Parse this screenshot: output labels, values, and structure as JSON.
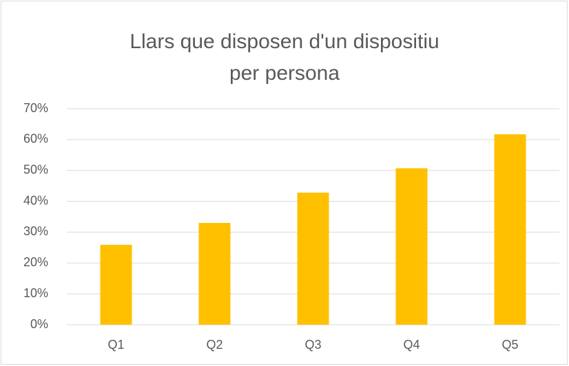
{
  "chart_data": {
    "type": "bar",
    "title": "Llars que disposen d'un dispositiu per persona",
    "categories": [
      "Q1",
      "Q2",
      "Q3",
      "Q4",
      "Q5"
    ],
    "values": [
      25.9,
      33.0,
      42.8,
      50.7,
      61.7
    ],
    "color": "#ffc000",
    "ylim": [
      0,
      70
    ],
    "yticks": [
      {
        "value": 0,
        "label": "0%"
      },
      {
        "value": 10,
        "label": "10%"
      },
      {
        "value": 20,
        "label": "20%"
      },
      {
        "value": 30,
        "label": "30%"
      },
      {
        "value": 40,
        "label": "40%"
      },
      {
        "value": 50,
        "label": "50%"
      },
      {
        "value": 60,
        "label": "60%"
      },
      {
        "value": 70,
        "label": "70%"
      }
    ],
    "grid": true
  }
}
